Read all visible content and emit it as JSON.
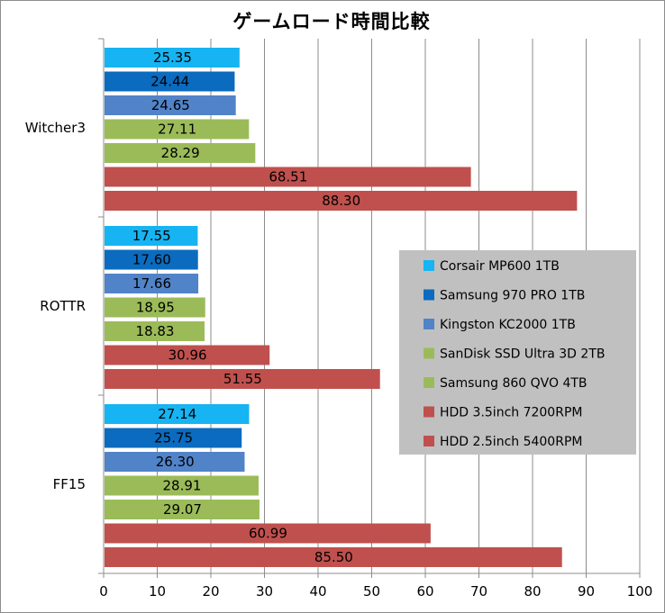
{
  "chart_data": {
    "type": "bar",
    "orientation": "horizontal",
    "title": "ゲームロード時間比較",
    "categories": [
      "Witcher3",
      "ROTTR",
      "FF15"
    ],
    "xlim": [
      0,
      100
    ],
    "xticks": [
      "0",
      "10",
      "20",
      "30",
      "40",
      "50",
      "60",
      "70",
      "80",
      "90",
      "100"
    ],
    "grid": true,
    "legend_position": "right",
    "series": [
      {
        "name": "Corsair MP600 1TB",
        "color": "#16b4f2",
        "values": [
          25.35,
          17.55,
          27.14
        ],
        "labels": [
          "25.35",
          "17.55",
          "27.14"
        ]
      },
      {
        "name": "Samsung 970 PRO 1TB",
        "color": "#0b6bbf",
        "values": [
          24.44,
          17.6,
          25.75
        ],
        "labels": [
          "24.44",
          "17.60",
          "25.75"
        ]
      },
      {
        "name": "Kingston KC2000 1TB",
        "color": "#5183c8",
        "values": [
          24.65,
          17.66,
          26.3
        ],
        "labels": [
          "24.65",
          "17.66",
          "26.30"
        ]
      },
      {
        "name": "SanDisk SSD Ultra 3D 2TB",
        "color": "#9bbb59",
        "values": [
          27.11,
          18.95,
          28.91
        ],
        "labels": [
          "27.11",
          "18.95",
          "28.91"
        ]
      },
      {
        "name": "Samsung 860 QVO 4TB",
        "color": "#9bbb59",
        "values": [
          28.29,
          18.83,
          29.07
        ],
        "labels": [
          "28.29",
          "18.83",
          "29.07"
        ]
      },
      {
        "name": "HDD 3.5inch 7200RPM",
        "color": "#c0504d",
        "values": [
          68.51,
          30.96,
          60.99
        ],
        "labels": [
          "68.51",
          "30.96",
          "60.99"
        ]
      },
      {
        "name": "HDD 2.5inch 5400RPM",
        "color": "#c0504d",
        "values": [
          88.3,
          51.55,
          85.5
        ],
        "labels": [
          "88.30",
          "51.55",
          "85.50"
        ]
      }
    ]
  }
}
